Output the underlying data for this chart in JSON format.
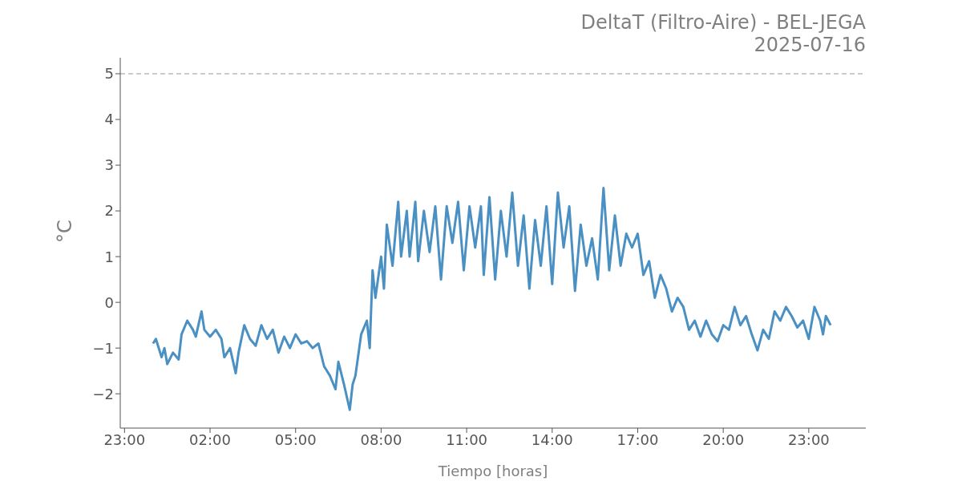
{
  "chart_data": {
    "type": "line",
    "title": "DeltaT (Filtro-Aire) - BEL-JEGA",
    "subtitle": "2025-07-16",
    "xlabel": "Tiempo [horas]",
    "ylabel": "°C",
    "x": [
      "2025-07-16T00:00",
      "2025-07-16T00:06",
      "2025-07-16T00:18",
      "2025-07-16T00:24",
      "2025-07-16T00:30",
      "2025-07-16T00:42",
      "2025-07-16T00:54",
      "2025-07-16T01:00",
      "2025-07-16T01:12",
      "2025-07-16T01:24",
      "2025-07-16T01:30",
      "2025-07-16T01:42",
      "2025-07-16T01:48",
      "2025-07-16T02:00",
      "2025-07-16T02:12",
      "2025-07-16T02:24",
      "2025-07-16T02:30",
      "2025-07-16T02:42",
      "2025-07-16T02:54",
      "2025-07-16T03:00",
      "2025-07-16T03:12",
      "2025-07-16T03:24",
      "2025-07-16T03:36",
      "2025-07-16T03:48",
      "2025-07-16T04:00",
      "2025-07-16T04:12",
      "2025-07-16T04:24",
      "2025-07-16T04:36",
      "2025-07-16T04:48",
      "2025-07-16T05:00",
      "2025-07-16T05:12",
      "2025-07-16T05:24",
      "2025-07-16T05:36",
      "2025-07-16T05:48",
      "2025-07-16T06:00",
      "2025-07-16T06:12",
      "2025-07-16T06:24",
      "2025-07-16T06:30",
      "2025-07-16T06:42",
      "2025-07-16T06:54",
      "2025-07-16T07:00",
      "2025-07-16T07:06",
      "2025-07-16T07:18",
      "2025-07-16T07:30",
      "2025-07-16T07:36",
      "2025-07-16T07:42",
      "2025-07-16T07:48",
      "2025-07-16T08:00",
      "2025-07-16T08:06",
      "2025-07-16T08:12",
      "2025-07-16T08:24",
      "2025-07-16T08:36",
      "2025-07-16T08:42",
      "2025-07-16T08:54",
      "2025-07-16T09:00",
      "2025-07-16T09:12",
      "2025-07-16T09:18",
      "2025-07-16T09:30",
      "2025-07-16T09:42",
      "2025-07-16T09:54",
      "2025-07-16T10:06",
      "2025-07-16T10:18",
      "2025-07-16T10:30",
      "2025-07-16T10:42",
      "2025-07-16T10:54",
      "2025-07-16T11:06",
      "2025-07-16T11:18",
      "2025-07-16T11:30",
      "2025-07-16T11:36",
      "2025-07-16T11:48",
      "2025-07-16T12:00",
      "2025-07-16T12:12",
      "2025-07-16T12:24",
      "2025-07-16T12:36",
      "2025-07-16T12:48",
      "2025-07-16T13:00",
      "2025-07-16T13:12",
      "2025-07-16T13:24",
      "2025-07-16T13:36",
      "2025-07-16T13:48",
      "2025-07-16T14:00",
      "2025-07-16T14:12",
      "2025-07-16T14:24",
      "2025-07-16T14:36",
      "2025-07-16T14:48",
      "2025-07-16T15:00",
      "2025-07-16T15:12",
      "2025-07-16T15:24",
      "2025-07-16T15:36",
      "2025-07-16T15:48",
      "2025-07-16T16:00",
      "2025-07-16T16:12",
      "2025-07-16T16:24",
      "2025-07-16T16:36",
      "2025-07-16T16:48",
      "2025-07-16T17:00",
      "2025-07-16T17:12",
      "2025-07-16T17:24",
      "2025-07-16T17:36",
      "2025-07-16T17:48",
      "2025-07-16T18:00",
      "2025-07-16T18:12",
      "2025-07-16T18:24",
      "2025-07-16T18:36",
      "2025-07-16T18:48",
      "2025-07-16T19:00",
      "2025-07-16T19:12",
      "2025-07-16T19:24",
      "2025-07-16T19:36",
      "2025-07-16T19:48",
      "2025-07-16T20:00",
      "2025-07-16T20:12",
      "2025-07-16T20:24",
      "2025-07-16T20:36",
      "2025-07-16T20:48",
      "2025-07-16T21:00",
      "2025-07-16T21:12",
      "2025-07-16T21:24",
      "2025-07-16T21:36",
      "2025-07-16T21:48",
      "2025-07-16T22:00",
      "2025-07-16T22:12",
      "2025-07-16T22:24",
      "2025-07-16T22:36",
      "2025-07-16T22:48",
      "2025-07-16T23:00",
      "2025-07-16T23:12",
      "2025-07-16T23:24",
      "2025-07-16T23:30",
      "2025-07-16T23:36",
      "2025-07-16T23:46"
    ],
    "series": [
      {
        "color": "#4a90c2",
        "values": [
          -0.9,
          -0.8,
          -1.2,
          -1.0,
          -1.35,
          -1.1,
          -1.25,
          -0.7,
          -0.4,
          -0.6,
          -0.75,
          -0.2,
          -0.6,
          -0.75,
          -0.6,
          -0.8,
          -1.2,
          -1.0,
          -1.55,
          -1.1,
          -0.5,
          -0.8,
          -0.95,
          -0.5,
          -0.8,
          -0.6,
          -1.1,
          -0.75,
          -1.0,
          -0.7,
          -0.9,
          -0.85,
          -1.0,
          -0.9,
          -1.4,
          -1.6,
          -1.9,
          -1.3,
          -1.8,
          -2.35,
          -1.8,
          -1.6,
          -0.7,
          -0.4,
          -1.0,
          0.7,
          0.1,
          1.0,
          0.3,
          1.7,
          0.8,
          2.2,
          1.0,
          2.0,
          1.0,
          2.2,
          0.9,
          2.0,
          1.1,
          2.1,
          0.5,
          2.1,
          1.3,
          2.2,
          0.7,
          2.1,
          1.2,
          2.1,
          0.6,
          2.3,
          0.5,
          2.0,
          1.0,
          2.4,
          0.8,
          1.9,
          0.3,
          1.8,
          0.8,
          2.1,
          0.4,
          2.4,
          1.2,
          2.1,
          0.25,
          1.7,
          0.8,
          1.4,
          0.5,
          2.5,
          0.7,
          1.9,
          0.8,
          1.5,
          1.2,
          1.5,
          0.6,
          0.9,
          0.1,
          0.6,
          0.3,
          -0.2,
          0.1,
          -0.1,
          -0.6,
          -0.4,
          -0.75,
          -0.4,
          -0.7,
          -0.85,
          -0.5,
          -0.6,
          -0.1,
          -0.5,
          -0.3,
          -0.7,
          -1.05,
          -0.6,
          -0.8,
          -0.2,
          -0.4,
          -0.1,
          -0.3,
          -0.55,
          -0.4,
          -0.8,
          -0.1,
          -0.4,
          -0.7,
          -0.3,
          -0.5
        ]
      }
    ],
    "xlim": [
      "2025-07-15T22:51",
      "2025-07-17T01:00"
    ],
    "xticks": [
      {
        "value": "2025-07-15T23:00",
        "label": "23:00"
      },
      {
        "value": "2025-07-16T02:00",
        "label": "02:00"
      },
      {
        "value": "2025-07-16T05:00",
        "label": "05:00"
      },
      {
        "value": "2025-07-16T08:00",
        "label": "08:00"
      },
      {
        "value": "2025-07-16T11:00",
        "label": "11:00"
      },
      {
        "value": "2025-07-16T14:00",
        "label": "14:00"
      },
      {
        "value": "2025-07-16T17:00",
        "label": "17:00"
      },
      {
        "value": "2025-07-16T20:00",
        "label": "20:00"
      },
      {
        "value": "2025-07-16T23:00",
        "label": "23:00"
      }
    ],
    "ylim": [
      -2.75,
      5.35
    ],
    "yticks": [
      {
        "value": -2,
        "label": "−2"
      },
      {
        "value": -1,
        "label": "−1"
      },
      0,
      1,
      2,
      3,
      4,
      5
    ],
    "ref_lines": [
      {
        "axis": "y",
        "value": 5,
        "color": "#bbbbbb",
        "line_style": "dashed"
      }
    ],
    "grid": false,
    "marker": "none",
    "line_style": "solid"
  }
}
